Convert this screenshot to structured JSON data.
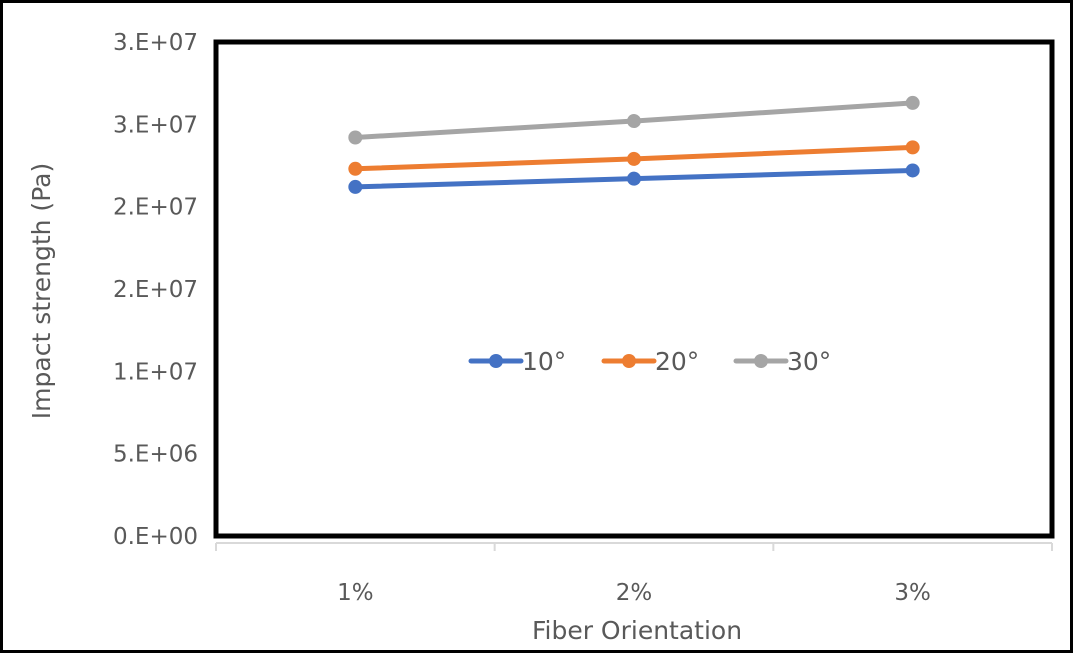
{
  "chart_data": {
    "type": "line",
    "categories": [
      "1%",
      "2%",
      "3%"
    ],
    "series": [
      {
        "name": "10°",
        "values": [
          21200000,
          21700000,
          22200000
        ],
        "color": "#4472C4"
      },
      {
        "name": "20°",
        "values": [
          22300000,
          22900000,
          23600000
        ],
        "color": "#ED7D31"
      },
      {
        "name": "30°",
        "values": [
          24200000,
          25200000,
          26300000
        ],
        "color": "#A5A5A5"
      }
    ],
    "title": "",
    "xlabel": "Fiber Orientation",
    "ylabel": "Impact strength  (Pa)",
    "yticks": [
      {
        "value": 0,
        "label": "0.E+00"
      },
      {
        "value": 5000000,
        "label": "5.E+06"
      },
      {
        "value": 10000000,
        "label": "1.E+07"
      },
      {
        "value": 15000000,
        "label": "2.E+07"
      },
      {
        "value": 20000000,
        "label": "2.E+07"
      },
      {
        "value": 25000000,
        "label": "3.E+07"
      },
      {
        "value": 30000000,
        "label": "3.E+07"
      }
    ],
    "ylim": [
      0,
      30000000
    ],
    "grid": false,
    "legend_position": "inside-center"
  }
}
